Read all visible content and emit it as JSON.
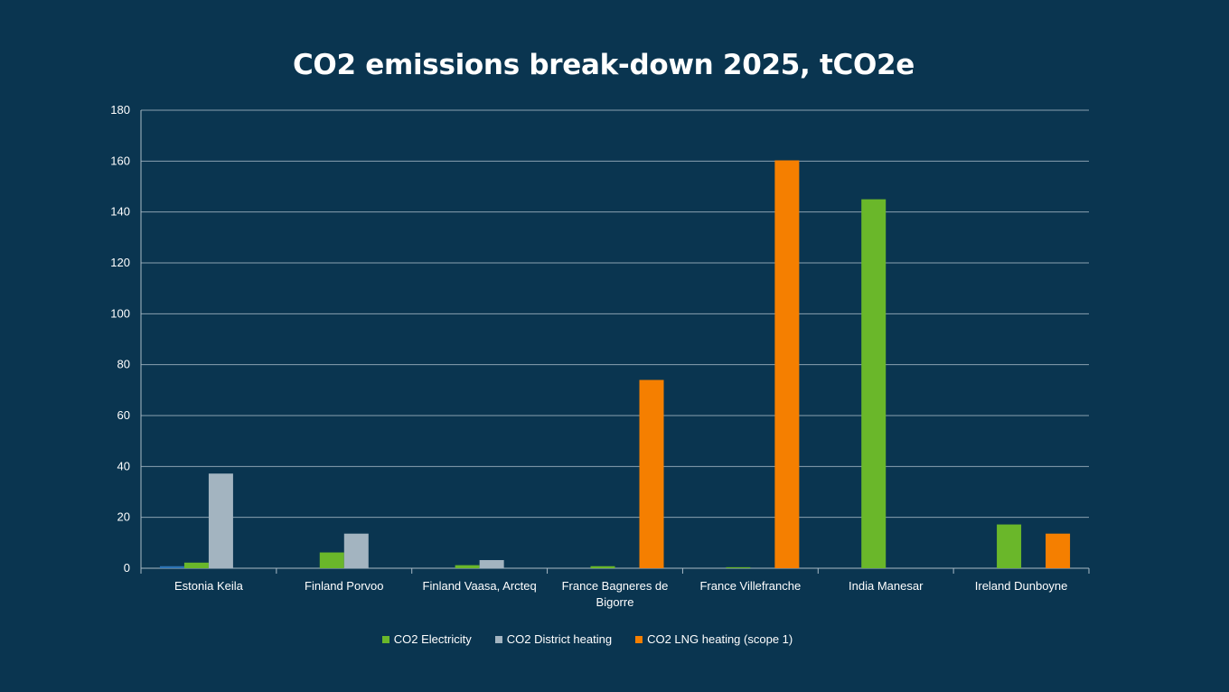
{
  "chart_data": {
    "type": "bar",
    "title": "CO2 emissions break-down 2025, tCO2e",
    "xlabel": "",
    "ylabel": "",
    "ylim": [
      0,
      180
    ],
    "yticks": [
      0,
      20,
      40,
      60,
      80,
      100,
      120,
      140,
      160,
      180
    ],
    "grid": true,
    "legend_position": "bottom",
    "categories": [
      "Estonia Keila",
      "Finland Porvoo",
      "Finland Vaasa, Arcteq",
      "France Bagneres de Bigorre",
      "France Villefranche",
      "India Manesar",
      "Ireland Dunboyne"
    ],
    "series": [
      {
        "color": "#2e75b6",
        "values": [
          0.8,
          0,
          0,
          0,
          0,
          0,
          0
        ]
      },
      {
        "name": "CO2 Electricity",
        "color": "#6ab72a",
        "values": [
          2.2,
          6.2,
          1.2,
          0.8,
          0.4,
          145,
          17.2
        ]
      },
      {
        "name": "CO2 District heating",
        "color": "#a3b4c0",
        "values": [
          37.2,
          13.6,
          3.2,
          0,
          0,
          0,
          0
        ]
      },
      {
        "name": "CO2 LNG heating (scope 1)",
        "color": "#f57f00",
        "values": [
          0,
          0,
          0,
          74,
          160.3,
          0,
          13.6
        ]
      }
    ]
  },
  "colors": {
    "background": "#0a3550",
    "gridline": "#8aa1b1",
    "axis": "#a9bac6",
    "text": "#ffffff"
  }
}
